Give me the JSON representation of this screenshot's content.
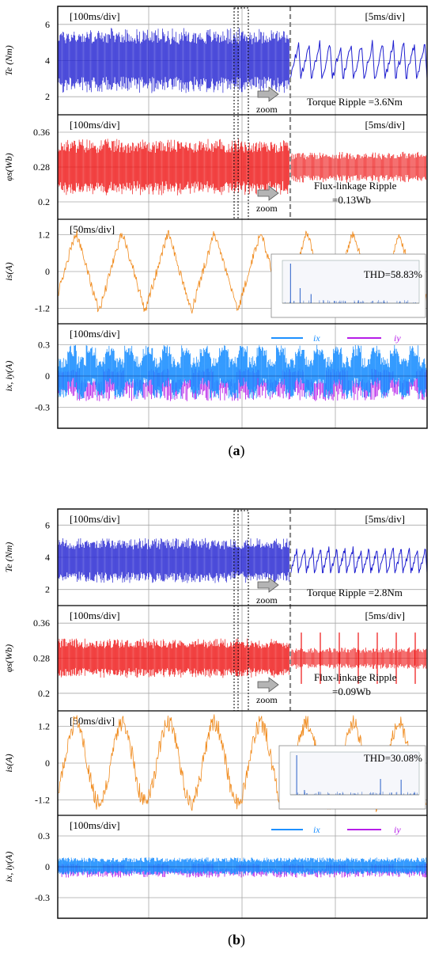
{
  "figure": {
    "colors": {
      "torque": "#1f1fd0",
      "flux": "#ee1111",
      "current": "#f08a1c",
      "ix": "#1e90ff",
      "iy": "#b61ee8",
      "grid": "#a8a8a8",
      "frame": "#000000",
      "zoom_arrow": "#b4b4b4"
    },
    "zoom_word": "zoom",
    "legend": {
      "ix": "ix",
      "iy": "iy"
    }
  },
  "chart_data": [
    {
      "id": "a",
      "type": "line",
      "caption": "(a)",
      "caption_letter": "a",
      "thd_label": "THD=58.83%",
      "panels": [
        {
          "key": "torque",
          "ylabel": "Te (Nm)",
          "ylim": [
            1,
            7
          ],
          "yticks": [
            "2",
            "4",
            "6"
          ],
          "ytick_values": [
            2,
            4,
            6
          ],
          "left_scale": "[100ms/div]",
          "right_scale": "[5ms/div]",
          "annotation": [
            "Torque Ripple =3.6Nm"
          ],
          "series": [
            {
              "mean": 4.0,
              "ripple": 3.6
            }
          ],
          "zoomed_segments": 13
        },
        {
          "key": "flux",
          "ylabel": "φs(Wb)",
          "ylim": [
            0.16,
            0.4
          ],
          "yticks": [
            "0.36",
            "0.28",
            "0.2"
          ],
          "ytick_values": [
            0.36,
            0.28,
            0.2
          ],
          "left_scale": "[100ms/div]",
          "right_scale": "[5ms/div]",
          "annotation": [
            "Flux-linkage Ripple",
            "=0.13Wb"
          ],
          "series": [
            {
              "mean": 0.28,
              "ripple": 0.13
            }
          ]
        },
        {
          "key": "current",
          "ylabel": "is(A)",
          "ylim": [
            -1.7,
            1.7
          ],
          "yticks": [
            "1.2",
            "0",
            "-1.2"
          ],
          "ytick_values": [
            1.2,
            0,
            -1.2
          ],
          "left_scale": "[50ms/div]",
          "series": [
            {
              "amplitude": 1.3,
              "cycles": 8
            }
          ]
        },
        {
          "key": "harmonic",
          "ylabel": "ix, iy(A)",
          "ylim": [
            -0.5,
            0.5
          ],
          "yticks": [
            "0.3",
            "0",
            "-0.3"
          ],
          "ytick_values": [
            0.3,
            0,
            -0.3
          ],
          "left_scale": "[100ms/div]",
          "series": [
            {
              "name": "ix",
              "amplitude": 0.22
            },
            {
              "name": "iy",
              "amplitude": 0.24
            }
          ]
        }
      ]
    },
    {
      "id": "b",
      "type": "line",
      "caption": "(b)",
      "caption_letter": "b",
      "thd_label": "THD=30.08%",
      "panels": [
        {
          "key": "torque",
          "ylabel": "Te (Nm)",
          "ylim": [
            1,
            7
          ],
          "yticks": [
            "2",
            "4",
            "6"
          ],
          "ytick_values": [
            2,
            4,
            6
          ],
          "left_scale": "[100ms/div]",
          "right_scale": "[5ms/div]",
          "annotation": [
            "Torque Ripple =2.8Nm"
          ],
          "series": [
            {
              "mean": 3.8,
              "ripple": 2.8
            }
          ],
          "zoomed_segments": 17
        },
        {
          "key": "flux",
          "ylabel": "φs(Wb)",
          "ylim": [
            0.16,
            0.4
          ],
          "yticks": [
            "0.36",
            "0.28",
            "0.2"
          ],
          "ytick_values": [
            0.36,
            0.28,
            0.2
          ],
          "left_scale": "[100ms/div]",
          "right_scale": "[5ms/div]",
          "annotation": [
            "Flux-linkage Ripple",
            "=0.09Wb"
          ],
          "series": [
            {
              "mean": 0.28,
              "ripple": 0.09
            }
          ]
        },
        {
          "key": "current",
          "ylabel": "is(A)",
          "ylim": [
            -1.7,
            1.7
          ],
          "yticks": [
            "1.2",
            "0",
            "-1.2"
          ],
          "ytick_values": [
            1.2,
            0,
            -1.2
          ],
          "left_scale": "[50ms/div]",
          "series": [
            {
              "amplitude": 1.3,
              "cycles": 8
            }
          ]
        },
        {
          "key": "harmonic",
          "ylabel": "ix, iy(A)",
          "ylim": [
            -0.5,
            0.5
          ],
          "yticks": [
            "0.3",
            "0",
            "-0.3"
          ],
          "ytick_values": [
            0.3,
            0,
            -0.3
          ],
          "left_scale": "[100ms/div]",
          "series": [
            {
              "name": "ix",
              "amplitude": 0.09
            },
            {
              "name": "iy",
              "amplitude": 0.11
            }
          ]
        }
      ]
    }
  ]
}
